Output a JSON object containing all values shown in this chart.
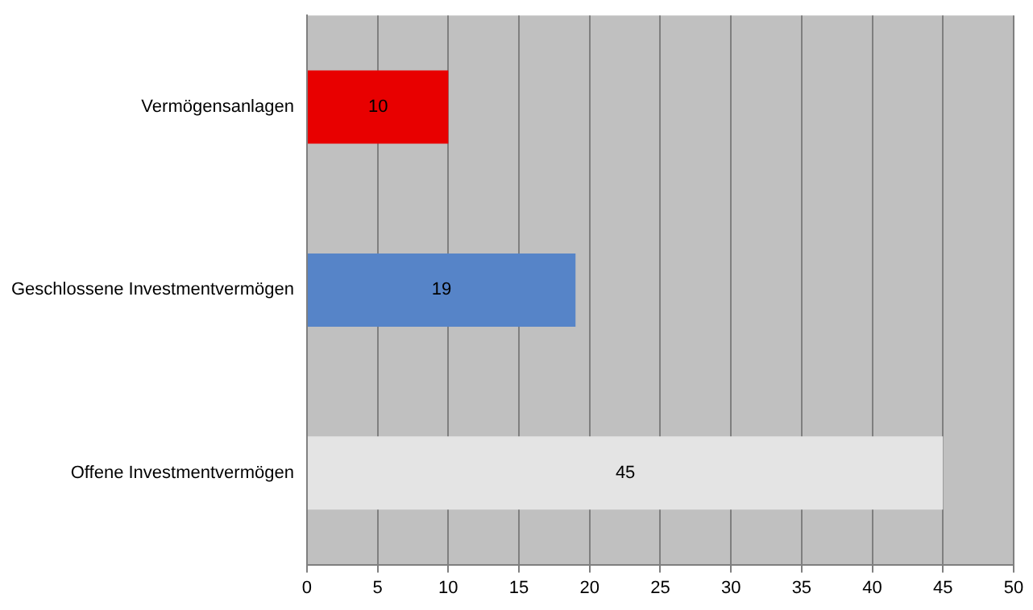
{
  "chart_data": {
    "type": "bar",
    "orientation": "horizontal",
    "categories": [
      "Vermögensanlagen",
      "Geschlossene Investmentvermögen",
      "Offene Investmentvermögen"
    ],
    "values": [
      10,
      19,
      45
    ],
    "colors": [
      "#e80000",
      "#5684c8",
      "#e4e4e4"
    ],
    "xlim": [
      0,
      50
    ],
    "xticks": [
      0,
      5,
      10,
      15,
      20,
      25,
      30,
      35,
      40,
      45,
      50
    ],
    "grid": "x",
    "data_labels": true,
    "legend": false
  }
}
